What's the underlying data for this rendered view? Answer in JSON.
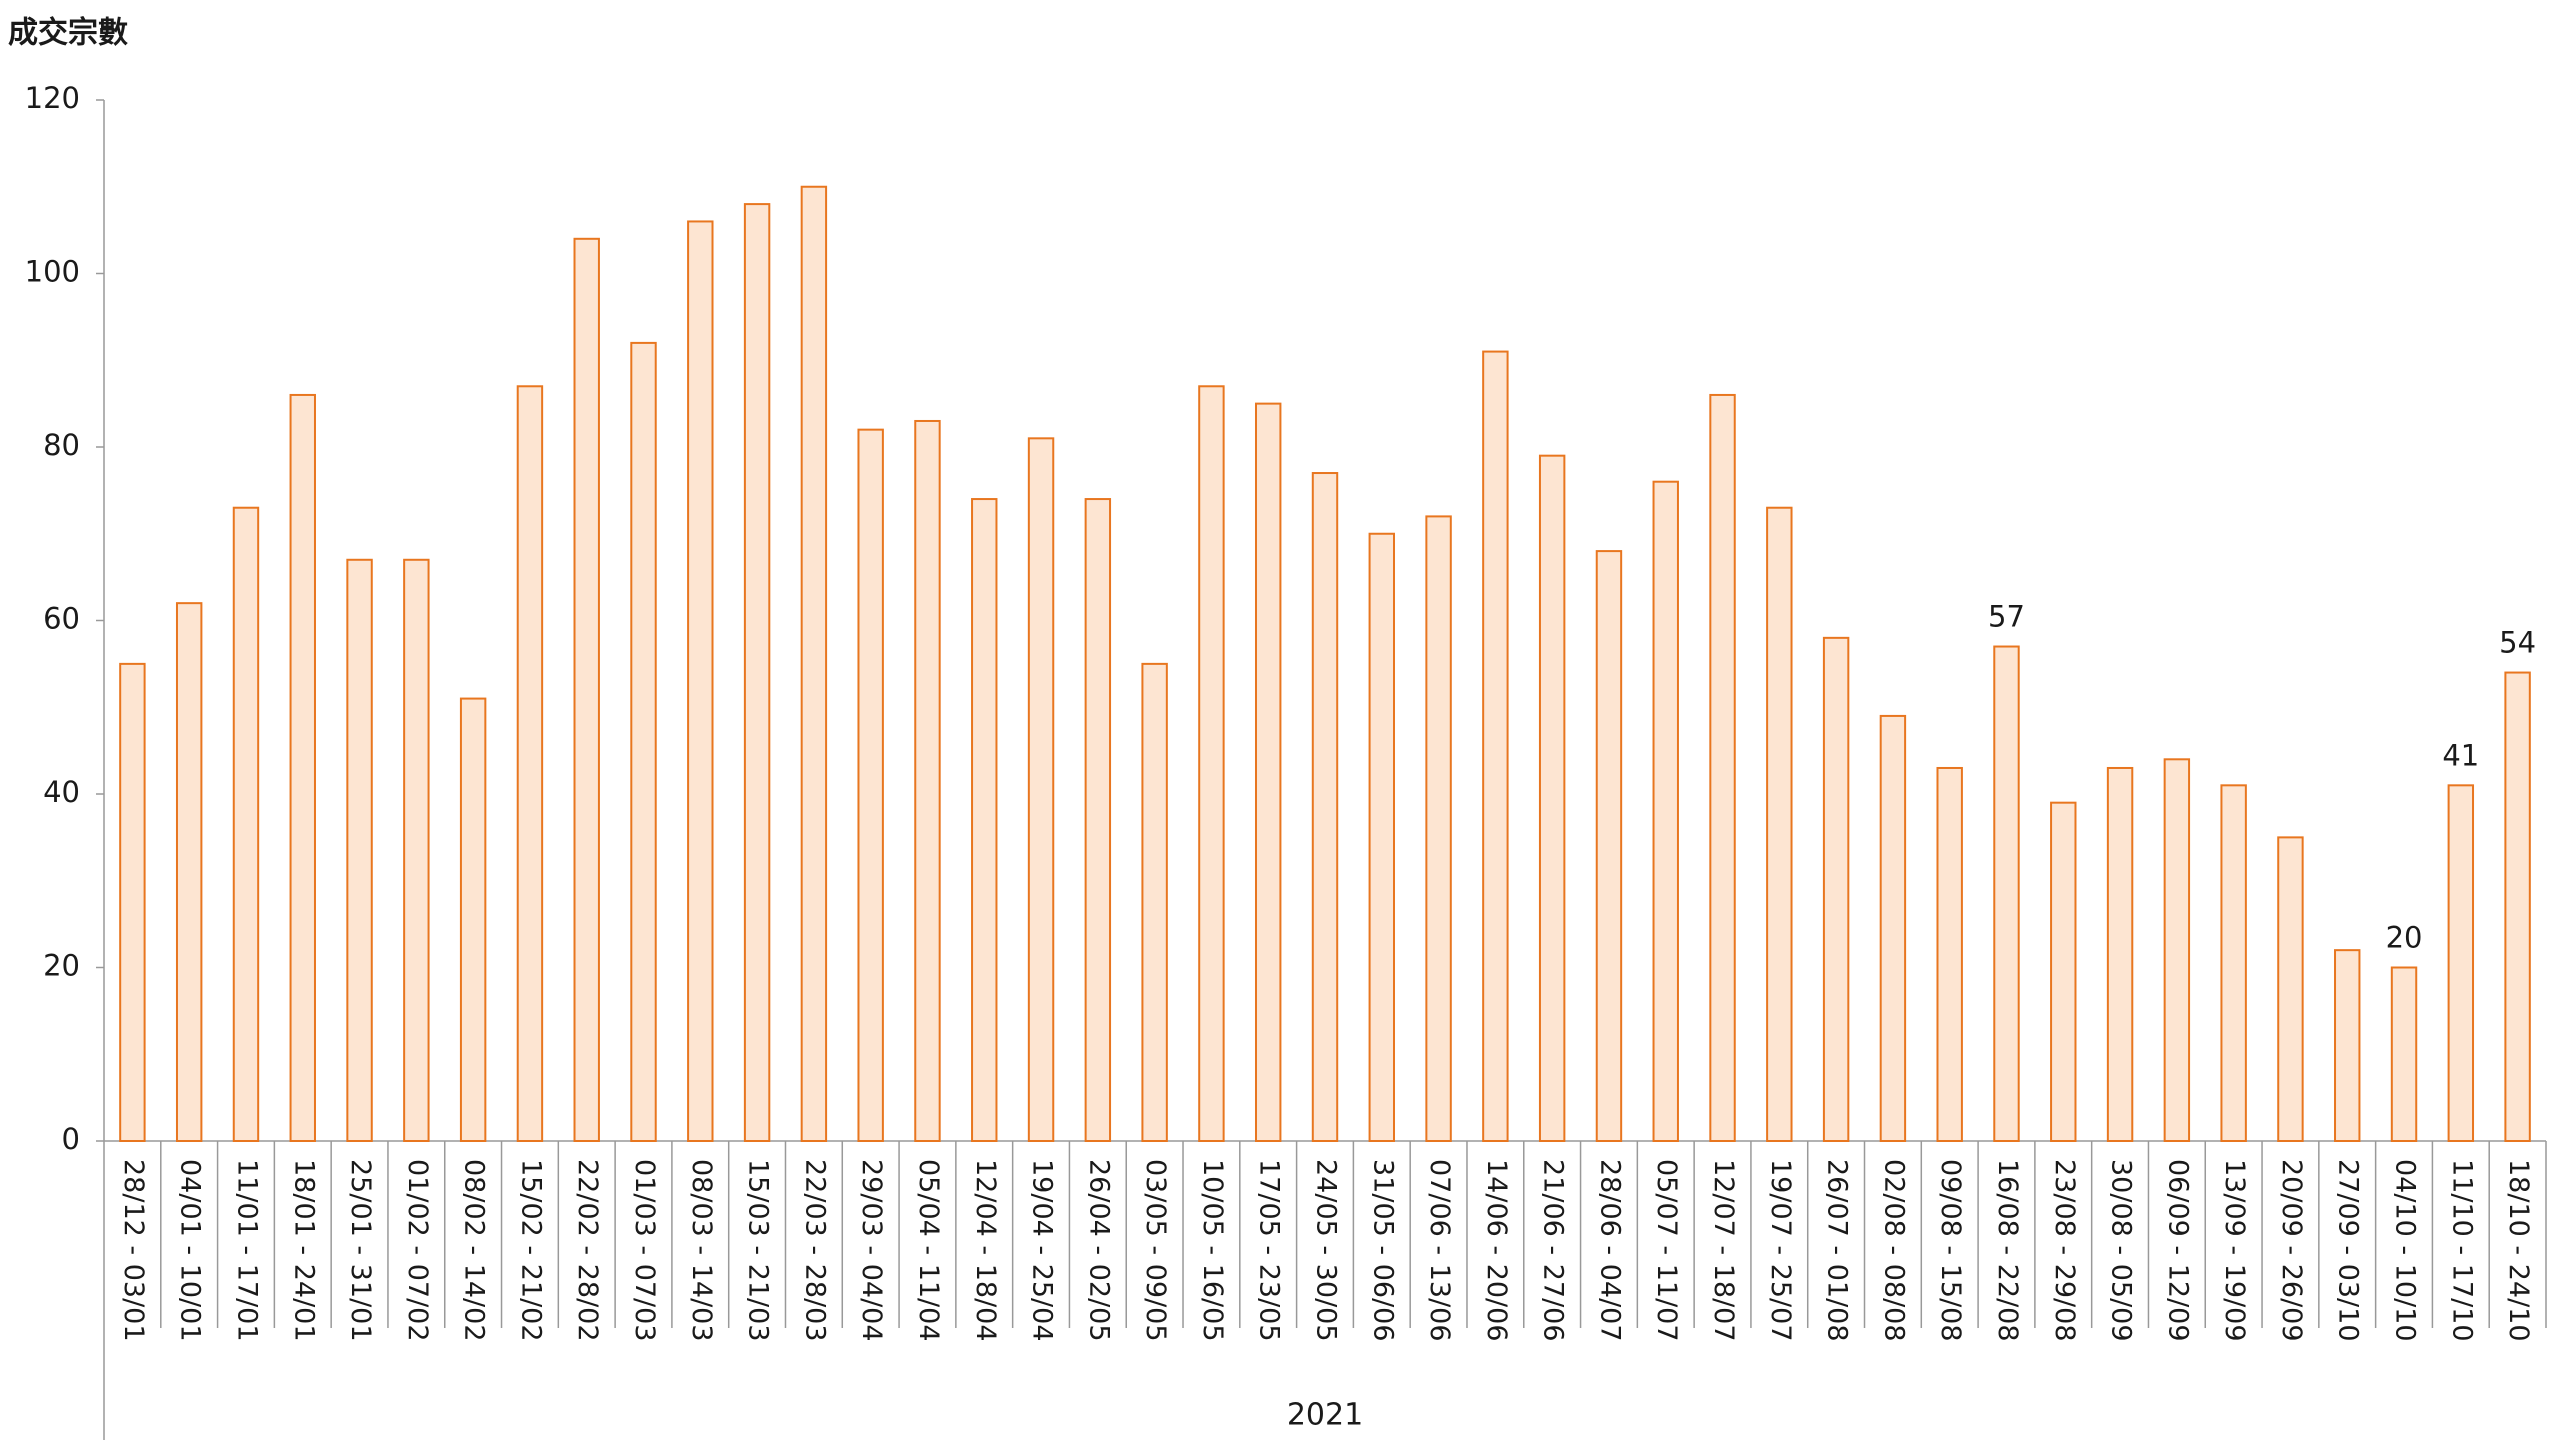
{
  "chart_data": {
    "type": "bar",
    "y_title": "成交宗數",
    "group_label": "2021",
    "categories": [
      "28/12 - 03/01",
      "04/01 - 10/01",
      "11/01 - 17/01",
      "18/01 - 24/01",
      "25/01 - 31/01",
      "01/02 - 07/02",
      "08/02 - 14/02",
      "15/02 - 21/02",
      "22/02 - 28/02",
      "01/03 - 07/03",
      "08/03 - 14/03",
      "15/03 - 21/03",
      "22/03 - 28/03",
      "29/03 - 04/04",
      "05/04 - 11/04",
      "12/04 - 18/04",
      "19/04 - 25/04",
      "26/04 - 02/05",
      "03/05 - 09/05",
      "10/05 - 16/05",
      "17/05 - 23/05",
      "24/05 - 30/05",
      "31/05 - 06/06",
      "07/06 - 13/06",
      "14/06 - 20/06",
      "21/06 - 27/06",
      "28/06 - 04/07",
      "05/07 - 11/07",
      "12/07 - 18/07",
      "19/07 - 25/07",
      "26/07 - 01/08",
      "02/08 - 08/08",
      "09/08 - 15/08",
      "16/08 - 22/08",
      "23/08 - 29/08",
      "30/08 - 05/09",
      "06/09 - 12/09",
      "13/09 - 19/09",
      "20/09 - 26/09",
      "27/09 - 03/10",
      "04/10 - 10/10",
      "11/10 - 17/10",
      "18/10 - 24/10"
    ],
    "values": [
      55,
      62,
      73,
      86,
      67,
      67,
      51,
      87,
      104,
      92,
      106,
      108,
      110,
      82,
      83,
      74,
      81,
      74,
      55,
      87,
      85,
      77,
      70,
      72,
      91,
      79,
      68,
      76,
      86,
      73,
      58,
      49,
      43,
      57,
      39,
      43,
      44,
      41,
      35,
      22,
      20,
      41,
      54
    ],
    "value_labels": [
      null,
      null,
      null,
      null,
      null,
      null,
      null,
      null,
      null,
      null,
      null,
      null,
      null,
      null,
      null,
      null,
      null,
      null,
      null,
      null,
      null,
      null,
      null,
      null,
      null,
      null,
      null,
      null,
      null,
      null,
      null,
      null,
      null,
      "57",
      null,
      null,
      null,
      null,
      null,
      null,
      "20",
      "41",
      "54"
    ],
    "color": "#fde5d2",
    "edge_color": "#e8761f",
    "ylim": [
      0,
      120
    ],
    "yticks": [
      0,
      20,
      40,
      60,
      80,
      100,
      120
    ],
    "grid": false
  }
}
